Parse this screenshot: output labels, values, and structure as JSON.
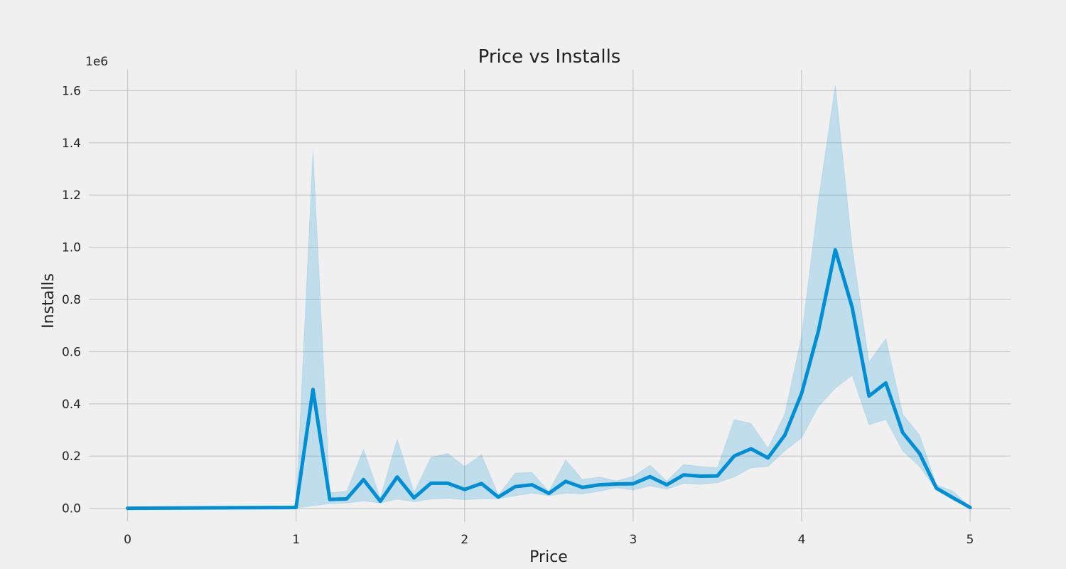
{
  "chart_data": {
    "type": "line",
    "title": "Price vs Installs",
    "xlabel": "Price",
    "ylabel": "Installs",
    "y_offset_label": "1e6",
    "xlim": [
      -0.23,
      5.24
    ],
    "ylim": [
      -0.05,
      1.68
    ],
    "x_ticks": [
      0,
      1,
      2,
      3,
      4,
      5
    ],
    "x_tick_labels": [
      "0",
      "1",
      "2",
      "3",
      "4",
      "5"
    ],
    "y_ticks": [
      0.0,
      0.2,
      0.4,
      0.6,
      0.8,
      1.0,
      1.2,
      1.4,
      1.6
    ],
    "y_tick_labels": [
      "0.0",
      "0.2",
      "0.4",
      "0.6",
      "0.8",
      "1.0",
      "1.2",
      "1.4",
      "1.6"
    ],
    "grid": true,
    "series": [
      {
        "color": "#008fd5",
        "x": [
          0.0,
          1.0,
          1.1,
          1.2,
          1.3,
          1.4,
          1.5,
          1.6,
          1.7,
          1.8,
          1.9,
          2.0,
          2.1,
          2.2,
          2.3,
          2.4,
          2.5,
          2.6,
          2.7,
          2.8,
          2.9,
          3.0,
          3.1,
          3.2,
          3.3,
          3.4,
          3.5,
          3.6,
          3.7,
          3.8,
          3.9,
          4.0,
          4.1,
          4.2,
          4.3,
          4.4,
          4.5,
          4.6,
          4.7,
          4.8,
          4.9,
          5.0
        ],
        "y": [
          0.0,
          0.003,
          0.455,
          0.034,
          0.036,
          0.11,
          0.027,
          0.12,
          0.04,
          0.096,
          0.096,
          0.072,
          0.095,
          0.043,
          0.083,
          0.09,
          0.057,
          0.103,
          0.08,
          0.09,
          0.093,
          0.094,
          0.121,
          0.09,
          0.128,
          0.123,
          0.124,
          0.2,
          0.228,
          0.193,
          0.28,
          0.44,
          0.68,
          0.99,
          0.77,
          0.43,
          0.48,
          0.29,
          0.21,
          0.077,
          0.04,
          0.003
        ],
        "ci_low": [
          0.0,
          0.001,
          0.01,
          0.017,
          0.02,
          0.028,
          0.02,
          0.035,
          0.025,
          0.035,
          0.038,
          0.033,
          0.036,
          0.037,
          0.048,
          0.058,
          0.048,
          0.058,
          0.055,
          0.065,
          0.079,
          0.07,
          0.086,
          0.073,
          0.095,
          0.092,
          0.098,
          0.12,
          0.155,
          0.16,
          0.22,
          0.27,
          0.39,
          0.46,
          0.51,
          0.32,
          0.34,
          0.22,
          0.16,
          0.07,
          0.03,
          0.001
        ],
        "ci_high": [
          0.0,
          0.005,
          1.37,
          0.06,
          0.065,
          0.225,
          0.04,
          0.265,
          0.06,
          0.195,
          0.21,
          0.16,
          0.205,
          0.05,
          0.135,
          0.137,
          0.065,
          0.185,
          0.11,
          0.12,
          0.105,
          0.122,
          0.165,
          0.105,
          0.168,
          0.16,
          0.155,
          0.34,
          0.325,
          0.23,
          0.36,
          0.66,
          1.18,
          1.62,
          1.0,
          0.56,
          0.65,
          0.36,
          0.28,
          0.09,
          0.065,
          0.005
        ]
      }
    ]
  }
}
